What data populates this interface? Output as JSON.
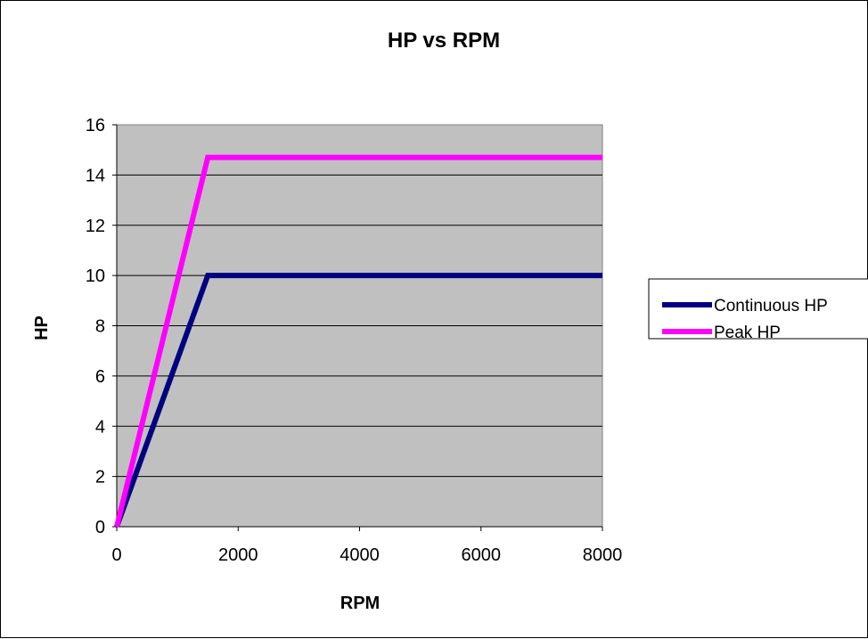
{
  "chart_data": {
    "type": "line",
    "title": "HP vs RPM",
    "xlabel": "RPM",
    "ylabel": "HP",
    "xlim": [
      0,
      8000
    ],
    "ylim": [
      0,
      16
    ],
    "x_ticks": [
      0,
      2000,
      4000,
      6000,
      8000
    ],
    "y_ticks": [
      0,
      2,
      4,
      6,
      8,
      10,
      12,
      14,
      16
    ],
    "grid": "horizontal",
    "plot_background": "#c0c0c0",
    "legend_position": "right",
    "series": [
      {
        "name": "Continuous HP",
        "color": "#000080",
        "x": [
          0,
          1500,
          8000
        ],
        "y": [
          0,
          10,
          10
        ]
      },
      {
        "name": "Peak HP",
        "color": "#ff00ff",
        "x": [
          0,
          1500,
          8000
        ],
        "y": [
          0,
          14.7,
          14.7
        ]
      }
    ]
  }
}
